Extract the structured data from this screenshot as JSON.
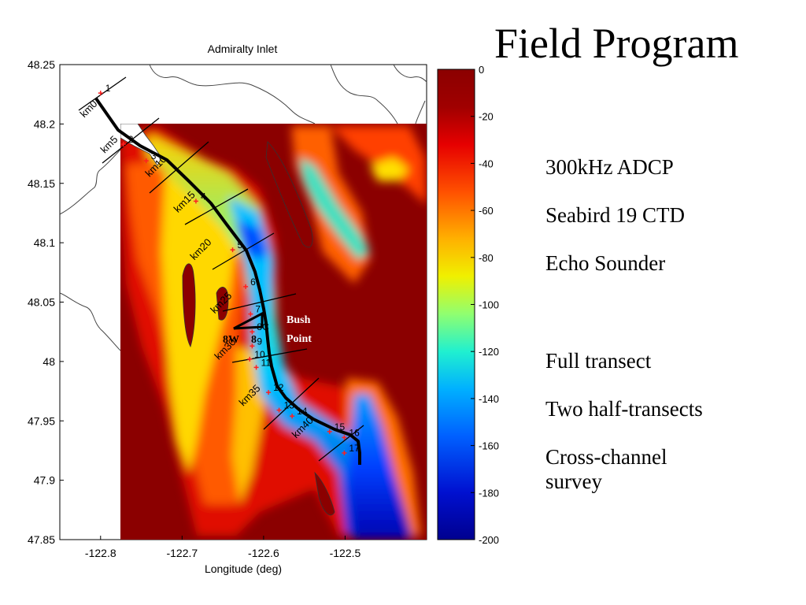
{
  "slide": {
    "title": "Field Program",
    "bullets": [
      "300kHz ADCP",
      "Seabird 19 CTD",
      "Echo Sounder",
      "",
      "Full transect",
      "Two half-transects",
      "Cross-channel survey"
    ]
  },
  "map": {
    "title": "Admiralty Inlet",
    "xlabel": "Longitude (deg)",
    "xlim": [
      -122.85,
      -122.4
    ],
    "ylim": [
      47.85,
      48.25
    ],
    "x_ticks": [
      "-122.8",
      "-122.7",
      "-122.6",
      "-122.5"
    ],
    "x_tick_values": [
      -122.8,
      -122.7,
      -122.6,
      -122.5
    ],
    "y_ticks": [
      "48.25",
      "48.2",
      "48.15",
      "48.1",
      "48.05",
      "48",
      "47.95",
      "47.9",
      "47.85"
    ],
    "y_tick_values": [
      48.25,
      48.2,
      48.15,
      48.1,
      48.05,
      48.0,
      47.95,
      47.9,
      47.85
    ],
    "colorbar": {
      "range": [
        -200,
        0
      ],
      "ticks": [
        "0",
        "-20",
        "-40",
        "-60",
        "-80",
        "-100",
        "-120",
        "-140",
        "-160",
        "-180",
        "-200"
      ],
      "colors": [
        "#8b0000",
        "#e60000",
        "#ff8000",
        "#ffe000",
        "#80ff80",
        "#00e0ff",
        "#0060ff",
        "#0000b0"
      ]
    },
    "km_labels": [
      {
        "text": "km0",
        "lon": -122.82,
        "lat": 48.205
      },
      {
        "text": "km5",
        "lon": -122.795,
        "lat": 48.175
      },
      {
        "text": "km10",
        "lon": -122.74,
        "lat": 48.155
      },
      {
        "text": "km15",
        "lon": -122.705,
        "lat": 48.125
      },
      {
        "text": "km20",
        "lon": -122.685,
        "lat": 48.085
      },
      {
        "text": "km25",
        "lon": -122.66,
        "lat": 48.04
      },
      {
        "text": "km30",
        "lon": -122.655,
        "lat": 48.001
      },
      {
        "text": "km35",
        "lon": -122.625,
        "lat": 47.962
      },
      {
        "text": "km40",
        "lon": -122.56,
        "lat": 47.935
      }
    ],
    "stations": [
      {
        "text": "1",
        "lon": -122.8,
        "lat": 48.226
      },
      {
        "text": "2",
        "lon": -122.772,
        "lat": 48.183
      },
      {
        "text": "3",
        "lon": -122.744,
        "lat": 48.169
      },
      {
        "text": "4",
        "lon": -122.683,
        "lat": 48.135
      },
      {
        "text": "5",
        "lon": -122.638,
        "lat": 48.094
      },
      {
        "text": "6",
        "lon": -122.622,
        "lat": 48.063
      },
      {
        "text": "7",
        "lon": -122.616,
        "lat": 48.04
      },
      {
        "text": "8C",
        "lon": -122.614,
        "lat": 48.025
      },
      {
        "text": "9",
        "lon": -122.614,
        "lat": 48.013
      },
      {
        "text": "10",
        "lon": -122.617,
        "lat": 48.002
      },
      {
        "text": "11",
        "lon": -122.609,
        "lat": 47.995
      },
      {
        "text": "12",
        "lon": -122.594,
        "lat": 47.974
      },
      {
        "text": "13",
        "lon": -122.581,
        "lat": 47.959
      },
      {
        "text": "14",
        "lon": -122.565,
        "lat": 47.954
      },
      {
        "text": "15",
        "lon": -122.519,
        "lat": 47.941
      },
      {
        "text": "16",
        "lon": -122.501,
        "lat": 47.936
      },
      {
        "text": "17",
        "lon": -122.501,
        "lat": 47.923
      }
    ],
    "annotations": {
      "bush_point": "Bush Point",
      "bush_point_color": "#ffffff",
      "station_8w": "8W",
      "station_8": "8"
    }
  }
}
